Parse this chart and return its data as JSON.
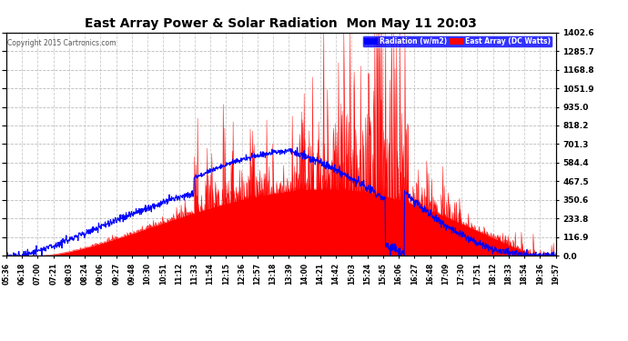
{
  "title": "East Array Power & Solar Radiation  Mon May 11 20:03",
  "copyright": "Copyright 2015 Cartronics.com",
  "legend_blue": "Radiation (w/m2)",
  "legend_red": "East Array (DC Watts)",
  "ymin": 0.0,
  "ymax": 1402.6,
  "yticks": [
    0.0,
    116.9,
    233.8,
    350.6,
    467.5,
    584.4,
    701.3,
    818.2,
    935.0,
    1051.9,
    1168.8,
    1285.7,
    1402.6
  ],
  "bg_color": "#ffffff",
  "plot_bg_color": "#ffffff",
  "grid_color": "#aaaaaa",
  "red_color": "#ff0000",
  "blue_color": "#0000ff",
  "title_color": "#000000",
  "tick_color": "#000000",
  "copyright_color": "#555555",
  "xtick_labels": [
    "05:36",
    "06:18",
    "07:00",
    "07:21",
    "08:03",
    "08:24",
    "09:06",
    "09:27",
    "09:48",
    "10:30",
    "10:51",
    "11:12",
    "11:33",
    "11:54",
    "12:15",
    "12:36",
    "12:57",
    "13:18",
    "13:39",
    "14:00",
    "14:21",
    "14:42",
    "15:03",
    "15:24",
    "15:45",
    "16:06",
    "16:27",
    "16:48",
    "17:09",
    "17:30",
    "17:51",
    "18:12",
    "18:33",
    "18:54",
    "19:36",
    "19:57"
  ],
  "n_points": 1440
}
